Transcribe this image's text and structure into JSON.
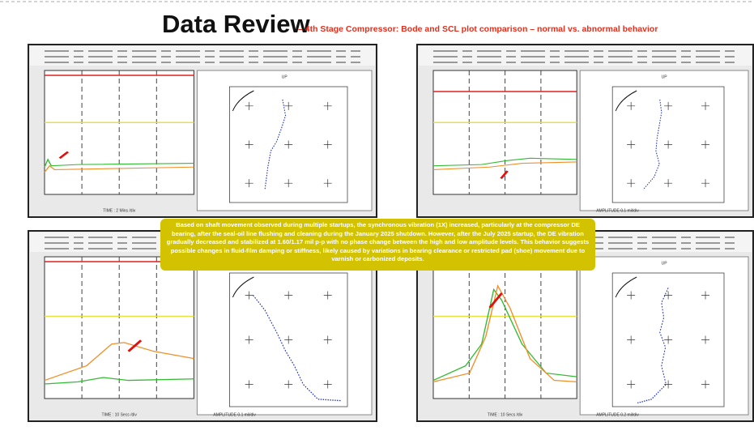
{
  "header": {
    "title": "Data Review",
    "subtitle": "– 4th Stage Compressor: Bode and SCL plot comparison – normal vs. abnormal behavior"
  },
  "note": "Based on shaft movement observed during multiple startups, the synchronous vibration (1X) increased, particularly at the compressor DE bearing, after the seal-oil line flushing and cleaning during the January 2025 shutdown. However, after the July 2025 startup, the DE vibration gradually decreased and stabilized at 1.60/1.17 mil p-p with no phase change between the high and low amplitude levels. This behavior suggests possible changes in fluid-film damping or stiffness, likely caused by variations in bearing clearance or restricted pad (shoe) movement due to varnish or carbonized deposits.",
  "panels": [
    {
      "bode_x_label": "TIME : 2 Mins /div",
      "polar_top": "UP"
    },
    {
      "polar_top": "UP",
      "polar_x_label": "AMPLITUDE 0.1 mil/div"
    },
    {
      "bode_x_label": "TIME : 10 Secs /div",
      "polar_x_label": "AMPLITUDE 0.1 mil/div"
    },
    {
      "bode_x_label": "TIME : 10 Secs /div",
      "polar_top": "UP",
      "polar_x_label": "AMPLITUDE 0.2 mil/div"
    }
  ]
}
